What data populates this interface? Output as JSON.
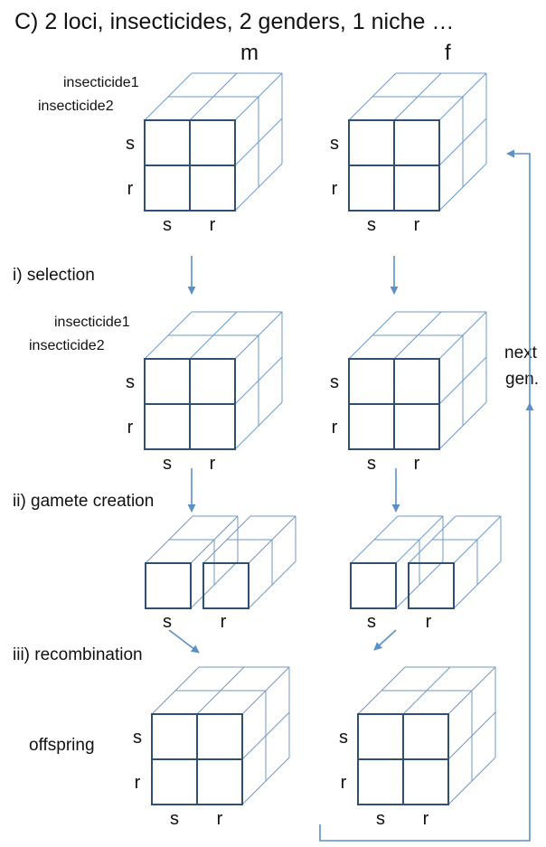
{
  "title": "C) 2 loci, insecticides, 2 genders, 1 niche …",
  "columns": {
    "male": "m",
    "female": "f"
  },
  "steps": {
    "selection": "i) selection",
    "gamete": "ii) gamete creation",
    "recombination": "iii) recombination"
  },
  "insecticide_labels": {
    "first": "insecticide1",
    "second": "insecticide2"
  },
  "allele_labels": {
    "susceptible": "s",
    "resistant": "r"
  },
  "offspring_label": "offspring",
  "next_gen_label": {
    "line1": "next",
    "line2": "gen."
  },
  "colors": {
    "front_edge": "#2f4f73",
    "back_edge": "#6f99c6",
    "arrow": "#5b8fc9"
  }
}
